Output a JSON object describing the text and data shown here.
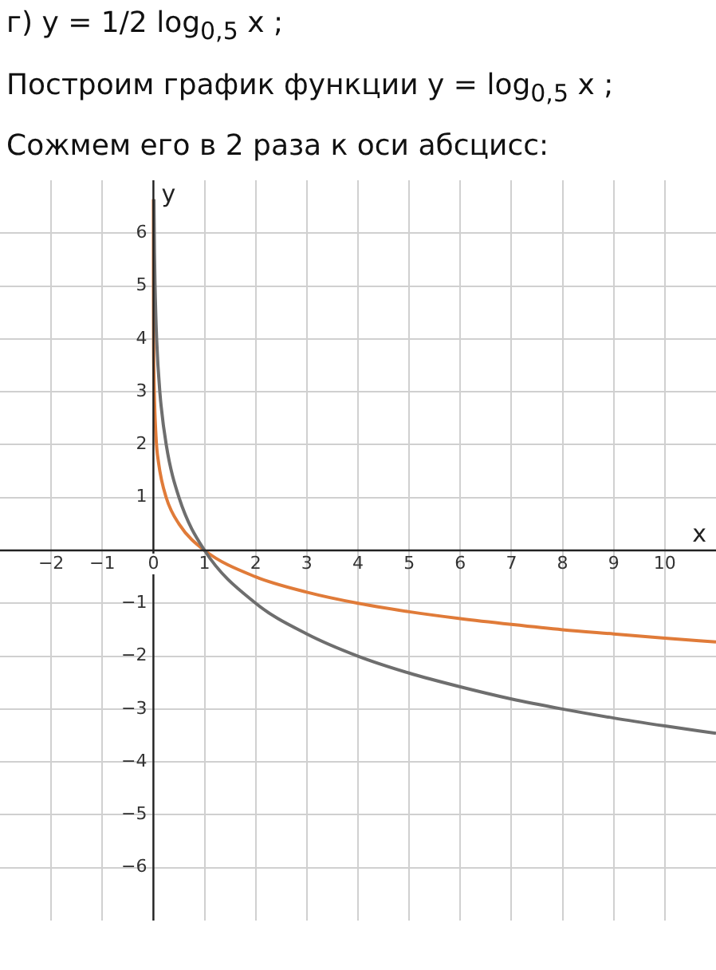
{
  "chart_data": {
    "type": "line",
    "title": "г) y = 1/2 log$_{0,5}$ x ;",
    "subtitle": "Построим график функции y = log$_{0,5}$ x ;",
    "annotations": [
      "Сожмем его в 2 раза к оси абсцисс:"
    ],
    "xlabel": "x",
    "ylabel": "y",
    "xlim": [
      -3,
      11
    ],
    "ylim": [
      -7,
      7
    ],
    "xticks": [
      -2,
      -1,
      0,
      1,
      2,
      3,
      4,
      5,
      6,
      7,
      8,
      9,
      10
    ],
    "yticks": [
      -6,
      -5,
      -4,
      -3,
      -2,
      -1,
      1,
      2,
      3,
      4,
      5,
      6
    ],
    "grid": true,
    "legend": false,
    "series": [
      {
        "color": "#6e6e6e",
        "x": [
          0.01,
          0.02,
          0.03,
          0.0625,
          0.125,
          0.25,
          0.5,
          1,
          2,
          3,
          4,
          5,
          6,
          7,
          8,
          9,
          10,
          11
        ],
        "values": [
          6.64,
          5.64,
          5.06,
          4,
          3,
          2,
          1,
          0,
          -1,
          -1.58,
          -2,
          -2.32,
          -2.58,
          -2.81,
          -3,
          -3.17,
          -3.32,
          -3.46
        ]
      },
      {
        "color": "#e07b39",
        "x": [
          0.0001,
          0.001,
          0.01,
          0.05,
          0.1,
          0.25,
          0.5,
          1,
          2,
          3,
          4,
          5,
          6,
          7,
          8,
          9,
          10,
          11
        ],
        "values": [
          6.64,
          4.98,
          3.32,
          2.16,
          1.66,
          1,
          0.5,
          0,
          -0.5,
          -0.79,
          -1,
          -1.16,
          -1.29,
          -1.4,
          -1.5,
          -1.58,
          -1.66,
          -1.73
        ]
      }
    ]
  }
}
